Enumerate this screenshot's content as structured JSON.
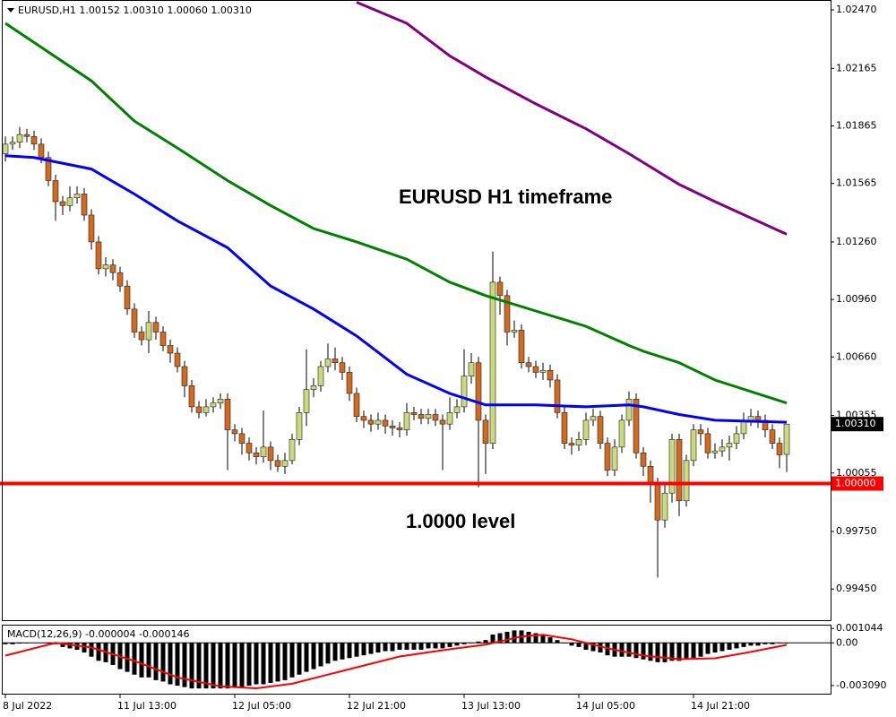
{
  "chart_data": [
    {
      "type": "candlestick",
      "info": "EURUSD,H1  1.00152 1.00310 1.00060 1.00310",
      "annotations": [
        "EURUSD H1 timeframe",
        "1.0000 level"
      ],
      "categories": [
        "8 Jul 2022",
        null,
        null,
        null,
        null,
        null,
        null,
        null,
        null,
        null,
        null,
        null,
        null,
        null,
        null,
        null,
        "11 Jul 13:00",
        null,
        null,
        null,
        null,
        null,
        null,
        null,
        null,
        null,
        null,
        null,
        null,
        null,
        null,
        null,
        "12 Jul 05:00",
        null,
        null,
        null,
        null,
        null,
        null,
        null,
        null,
        null,
        null,
        null,
        null,
        null,
        null,
        null,
        "12 Jul 21:00",
        null,
        null,
        null,
        null,
        null,
        null,
        null,
        null,
        null,
        null,
        null,
        null,
        null,
        null,
        null,
        "13 Jul 13:00",
        null,
        null,
        null,
        null,
        null,
        null,
        null,
        null,
        null,
        null,
        null,
        null,
        null,
        null,
        null,
        "14 Jul 05:00",
        null,
        null,
        null,
        null,
        null,
        null,
        null,
        null,
        null,
        null,
        null,
        null,
        null,
        null,
        null,
        "14 Jul 21:00",
        null,
        null,
        null,
        null,
        null,
        null,
        null,
        null,
        null,
        null,
        null,
        null,
        null
      ],
      "open": [
        1.0172,
        1.0177,
        1.0178,
        1.0182,
        1.0181,
        1.0177,
        1.017,
        1.0158,
        1.0147,
        1.0145,
        1.0149,
        1.0151,
        1.014,
        1.0126,
        1.0112,
        1.0114,
        1.011,
        1.0103,
        1.0091,
        1.0079,
        1.0075,
        1.0084,
        1.0079,
        1.0072,
        1.0068,
        1.0061,
        1.0051,
        1.004,
        1.0037,
        1.004,
        1.0042,
        1.0044,
        1.0028,
        1.0026,
        1.0021,
        1.0016,
        1.0014,
        1.0019,
        1.0012,
        1.0009,
        1.0012,
        1.0023,
        1.0037,
        1.0049,
        1.0051,
        1.0061,
        1.0065,
        1.0063,
        1.0058,
        1.0047,
        1.0035,
        1.0033,
        1.0031,
        1.0033,
        1.003,
        1.0029,
        1.0028,
        1.0037,
        1.0036,
        1.0034,
        1.0036,
        1.0033,
        1.0031,
        1.0037,
        1.004,
        1.0056,
        1.0063,
        1.0033,
        1.0021,
        1.0105,
        1.0098,
        1.0079,
        1.008,
        1.0063,
        1.0061,
        1.0058,
        1.0059,
        1.0054,
        1.0037,
        1.0021,
        1.002,
        1.0023,
        1.0033,
        1.0035,
        1.0021,
        1.0007,
        1.0019,
        1.0033,
        1.0044,
        1.0016,
        1.0009,
        1.0,
        0.9981,
        0.9995,
        1.0023,
        0.9991,
        1.0012,
        1.0028,
        1.0026,
        1.0016,
        1.0017,
        1.0019,
        1.0021,
        1.0026,
        1.0033,
        1.0035,
        1.0033,
        1.0028,
        1.0021,
        1.00152
      ],
      "high": [
        1.0181,
        1.0181,
        1.0186,
        1.0185,
        1.0184,
        1.018,
        1.0173,
        1.0161,
        1.015,
        1.0155,
        1.0155,
        1.0154,
        1.0143,
        1.0129,
        1.0118,
        1.0117,
        1.0113,
        1.0106,
        1.0094,
        1.0082,
        1.009,
        1.0087,
        1.0082,
        1.0075,
        1.0071,
        1.0064,
        1.0054,
        1.0043,
        1.0044,
        1.0045,
        1.0047,
        1.0047,
        1.0031,
        1.0029,
        1.0024,
        1.0019,
        1.0038,
        1.0022,
        1.0015,
        1.0016,
        1.0026,
        1.004,
        1.007,
        1.0055,
        1.0064,
        1.0073,
        1.0071,
        1.0066,
        1.0061,
        1.005,
        1.0038,
        1.0036,
        1.0037,
        1.0036,
        1.0033,
        1.0032,
        1.0042,
        1.004,
        1.0039,
        1.0039,
        1.0039,
        1.0036,
        1.0045,
        1.0044,
        1.007,
        1.0068,
        1.0066,
        1.0036,
        1.0121,
        1.0108,
        1.0101,
        1.0085,
        1.0083,
        1.0066,
        1.0064,
        1.0063,
        1.0062,
        1.0057,
        1.004,
        1.0024,
        1.0027,
        1.0037,
        1.0039,
        1.0038,
        1.0024,
        1.0023,
        1.0036,
        1.0048,
        1.0047,
        1.0019,
        1.0012,
        1.0003,
        1.0,
        1.0026,
        1.0026,
        1.0015,
        1.0031,
        1.0031,
        1.0029,
        1.0021,
        1.0023,
        1.0025,
        1.003,
        1.0037,
        1.0039,
        1.0038,
        1.0036,
        1.0031,
        1.0024,
        1.0031
      ],
      "low": [
        1.0168,
        1.0174,
        1.0175,
        1.0178,
        1.0174,
        1.0167,
        1.0155,
        1.0137,
        1.014,
        1.0142,
        1.0146,
        1.0137,
        1.0122,
        1.0109,
        1.0108,
        1.0106,
        1.01,
        1.0088,
        1.0076,
        1.0072,
        1.0068,
        1.0075,
        1.0069,
        1.0063,
        1.0058,
        1.0045,
        1.0037,
        1.0034,
        1.0035,
        1.0037,
        1.0039,
        1.0007,
        1.0022,
        1.0015,
        1.0012,
        1.001,
        1.0011,
        1.0007,
        1.0006,
        1.0005,
        1.001,
        1.002,
        1.003,
        1.0045,
        1.0048,
        1.0058,
        1.0059,
        1.0054,
        1.0043,
        1.0032,
        1.0029,
        1.0027,
        1.0028,
        1.0026,
        1.0025,
        1.0024,
        1.0025,
        1.0033,
        1.0031,
        1.0031,
        1.003,
        1.0007,
        1.0028,
        1.0034,
        1.0037,
        1.0052,
        0.9998,
        1.0005,
        1.0018,
        1.0088,
        1.0072,
        1.0076,
        1.006,
        1.0058,
        1.0055,
        1.0054,
        1.005,
        1.0034,
        1.0018,
        1.0015,
        1.0017,
        1.002,
        1.003,
        1.0018,
        1.0004,
        1.0004,
        1.0016,
        1.003,
        1.0013,
        1.0004,
        0.999,
        0.9951,
        0.9977,
        0.999,
        0.9983,
        0.9988,
        1.0009,
        1.002,
        1.0013,
        1.0013,
        1.0014,
        1.0012,
        1.0018,
        1.0023,
        1.003,
        1.0029,
        1.0024,
        1.0018,
        1.0008,
        1.0006
      ],
      "close": [
        1.0177,
        1.0178,
        1.0182,
        1.0181,
        1.0177,
        1.017,
        1.0158,
        1.0147,
        1.0145,
        1.0149,
        1.0151,
        1.014,
        1.0126,
        1.0112,
        1.0114,
        1.011,
        1.0103,
        1.0091,
        1.0079,
        1.0075,
        1.0084,
        1.0079,
        1.0072,
        1.0068,
        1.0061,
        1.0051,
        1.004,
        1.0037,
        1.004,
        1.0042,
        1.0044,
        1.0028,
        1.0026,
        1.0021,
        1.0016,
        1.0014,
        1.0019,
        1.0012,
        1.0009,
        1.0012,
        1.0023,
        1.0037,
        1.0049,
        1.0051,
        1.0061,
        1.0065,
        1.0063,
        1.0058,
        1.0047,
        1.0035,
        1.0033,
        1.0031,
        1.0033,
        1.003,
        1.0029,
        1.0028,
        1.0037,
        1.0036,
        1.0034,
        1.0036,
        1.0033,
        1.0031,
        1.0037,
        1.004,
        1.0056,
        1.0063,
        1.0033,
        1.0021,
        1.0105,
        1.0098,
        1.0079,
        1.008,
        1.0063,
        1.0061,
        1.0058,
        1.0059,
        1.0054,
        1.0037,
        1.0021,
        1.002,
        1.0023,
        1.0033,
        1.0035,
        1.0021,
        1.0007,
        1.0019,
        1.0033,
        1.0044,
        1.0016,
        1.0009,
        1.0,
        0.9981,
        0.9995,
        1.0023,
        0.9991,
        1.0012,
        1.0028,
        1.0026,
        1.0016,
        1.0017,
        1.0019,
        1.0021,
        1.0026,
        1.0033,
        1.0035,
        1.0033,
        1.0028,
        1.0021,
        1.0015,
        1.0031
      ],
      "up_color": "#cbd97a",
      "down_color": "#d2691e",
      "outline_color": "#222222",
      "lines": [
        {
          "color": "#0000ff",
          "x": [
            0,
            4,
            12,
            18,
            24,
            31,
            37,
            43,
            49,
            56,
            62,
            67,
            74,
            81,
            87,
            89,
            94,
            99,
            109
          ],
          "values": [
            1.0171,
            1.017,
            1.0164,
            1.0151,
            1.0137,
            1.0123,
            1.0103,
            1.0091,
            1.0077,
            1.0057,
            1.0047,
            1.0041,
            1.0041,
            1.004,
            1.0041,
            1.004,
            1.0036,
            1.0033,
            1.0032
          ]
        },
        {
          "color": "#008000",
          "x": [
            0,
            4,
            12,
            18,
            24,
            31,
            37,
            43,
            49,
            56,
            62,
            67,
            74,
            81,
            87,
            89,
            94,
            99,
            109
          ],
          "values": [
            1.024,
            1.023,
            1.021,
            1.0189,
            1.0175,
            1.0158,
            1.0145,
            1.0133,
            1.0126,
            1.0117,
            1.0105,
            1.0098,
            1.009,
            1.0082,
            1.0072,
            1.0069,
            1.0063,
            1.0054,
            1.0042
          ]
        },
        {
          "color": "#800080",
          "x": [
            49,
            56,
            62,
            67,
            74,
            81,
            87,
            94,
            99,
            109
          ],
          "values": [
            1.0251,
            1.024,
            1.0223,
            1.0212,
            1.0198,
            1.0185,
            1.0172,
            1.0156,
            1.0147,
            1.013
          ]
        }
      ],
      "level": {
        "value": 1,
        "label": "1.00000",
        "color": "#ff0000"
      },
      "last_price": {
        "value": 1.0031,
        "label": "1.00310",
        "color": "#000000"
      },
      "ylim": [
        0.99292,
        1.02517
      ],
      "yticks": [
        {
          "value": 1.0247,
          "label": "1.02470"
        },
        1.02165,
        1.01865,
        1.01565,
        {
          "value": 1.0126,
          "label": "1.01260"
        },
        {
          "value": 1.0096,
          "label": "1.00960"
        },
        {
          "value": 1.0066,
          "label": "1.00660"
        },
        1.00355,
        1.00055,
        {
          "value": 0.9975,
          "label": "0.99750"
        },
        {
          "value": 0.9945,
          "label": "0.99450"
        }
      ]
    },
    {
      "type": "macd",
      "info": "MACD(12,26,9) -0.000004 -0.000146",
      "color": "#000000",
      "values": [
        -0.0001,
        -0.0001,
        -5e-05,
        0,
        2e-05,
        2e-05,
        -5e-05,
        -0.0001,
        -0.0003,
        -0.0004,
        -0.0005,
        -0.0007,
        -0.001,
        -0.0013,
        -0.0014,
        -0.0016,
        -0.0019,
        -0.0021,
        -0.0023,
        -0.0025,
        -0.0025,
        -0.0027,
        -0.0028,
        -0.003,
        -0.0031,
        -0.0032,
        -0.0033,
        -0.0033,
        -0.0033,
        -0.0033,
        -0.0033,
        -0.0033,
        -0.0032,
        -0.0032,
        -0.0031,
        -0.003,
        -0.003,
        -0.0029,
        -0.0028,
        -0.0027,
        -0.0025,
        -0.0023,
        -0.0021,
        -0.0019,
        -0.0017,
        -0.0015,
        -0.0013,
        -0.0012,
        -0.0011,
        -0.001,
        -0.0009,
        -0.0008,
        -0.0007,
        -0.0006,
        -0.0006,
        -0.0005,
        -0.0005,
        -0.0005,
        -0.0005,
        -0.0004,
        -0.0004,
        -0.0004,
        -0.0003,
        -0.0002,
        -0.0001,
        0,
        0.0001,
        0.0002,
        0.0006,
        0.0007,
        0.0008,
        0.0009,
        0.0009,
        0.0008,
        0.0007,
        0.0006,
        0.0004,
        0.0002,
        0,
        -0.0002,
        -0.0003,
        -0.0005,
        -0.0006,
        -0.0007,
        -0.0009,
        -0.001,
        -0.001,
        -0.001,
        -0.0011,
        -0.0012,
        -0.0013,
        -0.0014,
        -0.0014,
        -0.0013,
        -0.0013,
        -0.0012,
        -0.0011,
        -0.001,
        -0.0008,
        -0.0007,
        -0.0006,
        -0.0005,
        -0.0004,
        -0.0003,
        -0.0002,
        -0.0002,
        -0.0001,
        -0.0001,
        0,
        -4e-06
      ],
      "signal": {
        "color": "#ff0000",
        "x": [
          0,
          7,
          12,
          18,
          24,
          30,
          35,
          40,
          45,
          50,
          55,
          62,
          67,
          72,
          75,
          79,
          84,
          89,
          94,
          99,
          104,
          109
        ],
        "values": [
          -0.00092,
          0,
          -0.00033,
          -0.00131,
          -0.0025,
          -0.00315,
          -0.00329,
          -0.00296,
          -0.0023,
          -0.00164,
          -0.00099,
          -0.00046,
          -0.00013,
          0.00046,
          0.00059,
          0.00026,
          -0.00039,
          -0.00092,
          -0.00118,
          -0.00112,
          -0.00066,
          -0.000146
        ]
      },
      "ylim": [
        -0.00368,
        0.00125
      ],
      "yticks": [
        0.001044,
        {
          "value": 0,
          "label": "0.00"
        },
        {
          "value": -0.00309,
          "label": "-0.003090"
        }
      ]
    }
  ]
}
